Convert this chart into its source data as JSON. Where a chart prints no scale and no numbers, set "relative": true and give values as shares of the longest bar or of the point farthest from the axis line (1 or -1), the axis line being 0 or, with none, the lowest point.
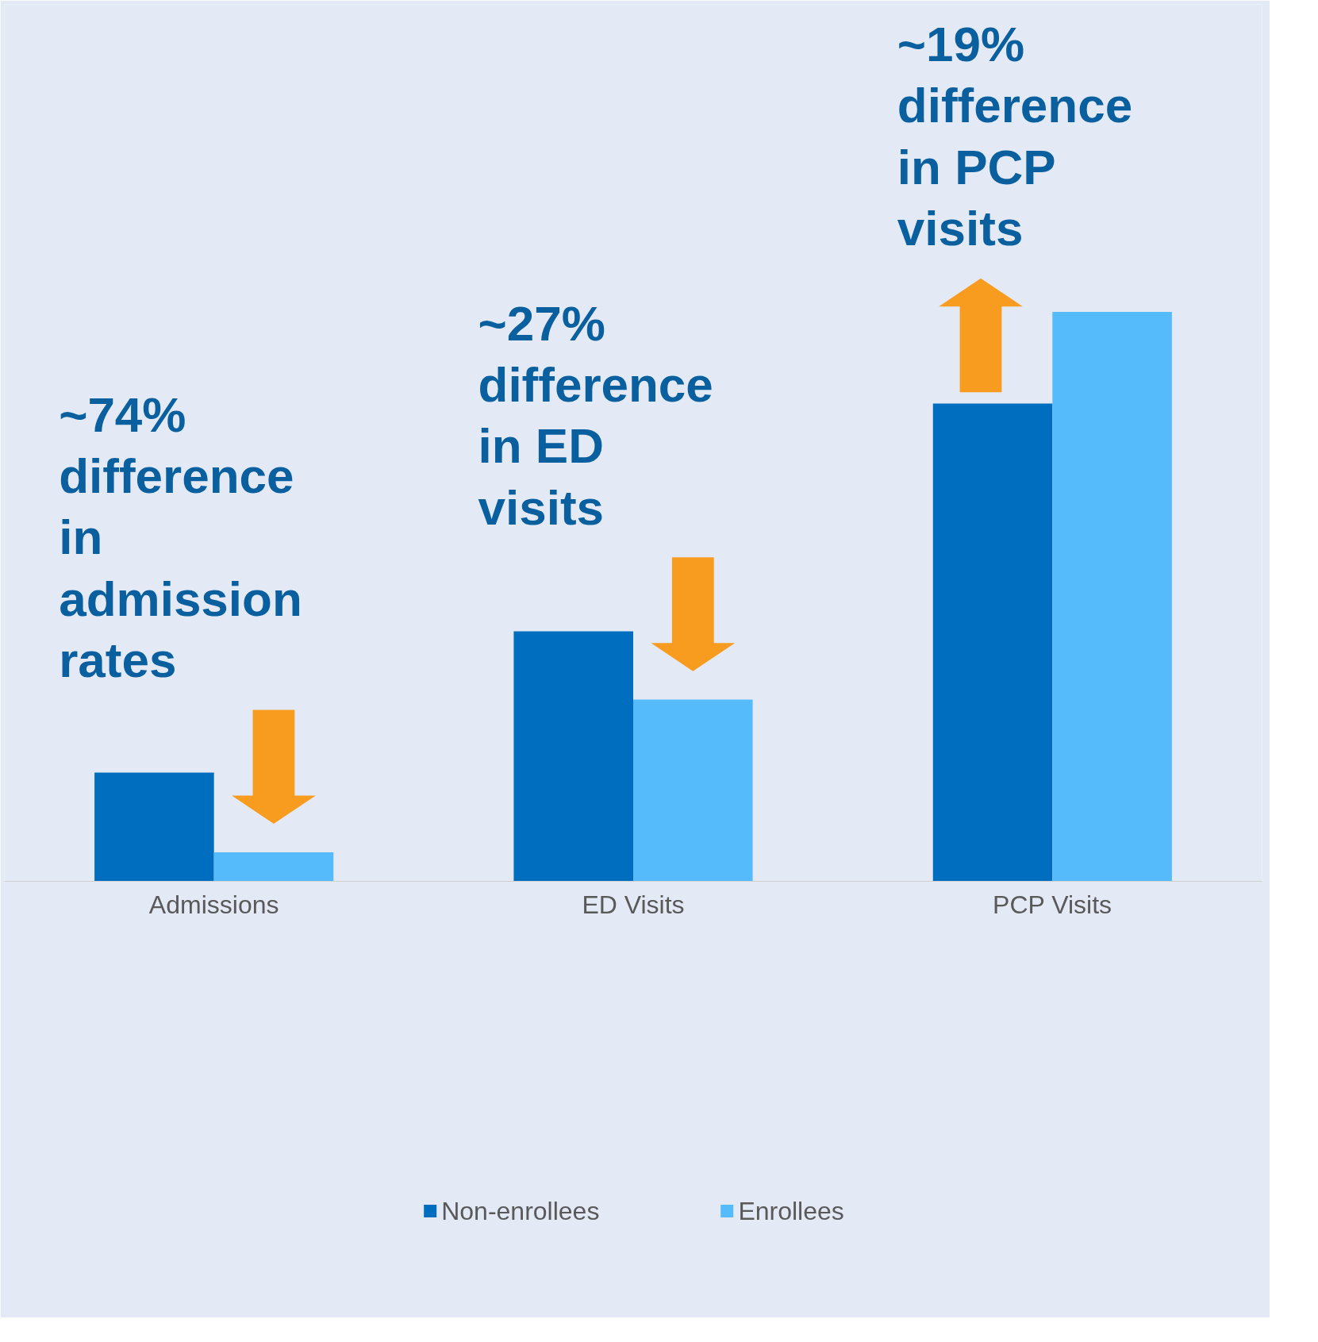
{
  "chart_data": {
    "type": "bar",
    "relative": true,
    "categories": [
      "Admissions",
      "ED Visits",
      "PCP Visits"
    ],
    "series": [
      {
        "name": "Non-enrollees",
        "color": "#006ebe",
        "values": [
          0.191,
          0.439,
          0.839
        ]
      },
      {
        "name": "Enrollees",
        "color": "#55bbfb",
        "values": [
          0.051,
          0.319,
          1
        ]
      }
    ],
    "annotations": [
      "~74% difference in admission rates",
      "~27% difference in ED visits",
      "~19% difference in PCP visits"
    ],
    "legend": "bottom",
    "grid": false
  }
}
